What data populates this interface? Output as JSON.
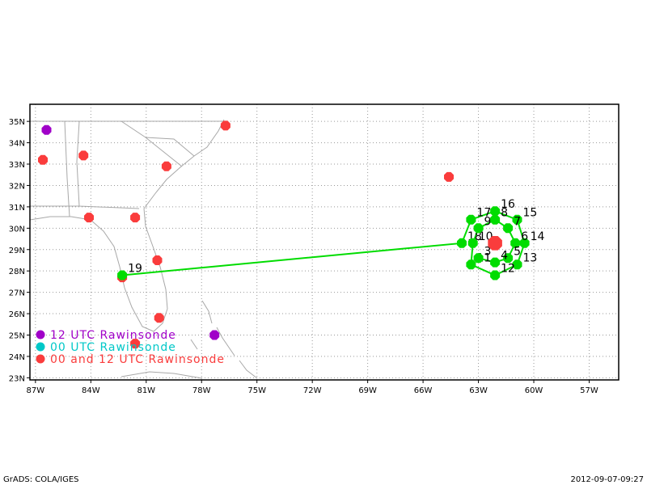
{
  "map": {
    "lon_range": [
      -87.3,
      -55.4
    ],
    "lat_range": [
      22.9,
      35.8
    ],
    "xticks": [
      {
        "value": -87,
        "label": "87W"
      },
      {
        "value": -84,
        "label": "84W"
      },
      {
        "value": -81,
        "label": "81W"
      },
      {
        "value": -78,
        "label": "78W"
      },
      {
        "value": -75,
        "label": "75W"
      },
      {
        "value": -72,
        "label": "72W"
      },
      {
        "value": -69,
        "label": "69W"
      },
      {
        "value": -66,
        "label": "66W"
      },
      {
        "value": -63,
        "label": "63W"
      },
      {
        "value": -60,
        "label": "60W"
      },
      {
        "value": -57,
        "label": "57W"
      }
    ],
    "yticks": [
      {
        "value": 23,
        "label": "23N"
      },
      {
        "value": 24,
        "label": "24N"
      },
      {
        "value": 25,
        "label": "25N"
      },
      {
        "value": 26,
        "label": "26N"
      },
      {
        "value": 27,
        "label": "27N"
      },
      {
        "value": 28,
        "label": "28N"
      },
      {
        "value": 29,
        "label": "29N"
      },
      {
        "value": 30,
        "label": "30N"
      },
      {
        "value": 31,
        "label": "31N"
      },
      {
        "value": 32,
        "label": "32N"
      },
      {
        "value": 33,
        "label": "33N"
      },
      {
        "value": 34,
        "label": "34N"
      },
      {
        "value": 35,
        "label": "35N"
      }
    ],
    "legend": [
      {
        "label": "12 UTC Rawinsonde",
        "color": "#a000c8"
      },
      {
        "label": "00 UTC Rawinsonde",
        "color": "#00c8c8"
      },
      {
        "label": "00 and 12 UTC Rawinsonde",
        "color": "#fa3c3c"
      }
    ],
    "rawinsondes": [
      {
        "lon": -86.4,
        "lat": 34.6,
        "color": "#a000c8"
      },
      {
        "lon": -77.3,
        "lat": 25.0,
        "color": "#a000c8"
      },
      {
        "lon": -86.6,
        "lat": 33.2,
        "color": "#fa3c3c"
      },
      {
        "lon": -84.4,
        "lat": 33.4,
        "color": "#fa3c3c"
      },
      {
        "lon": -79.9,
        "lat": 32.9,
        "color": "#fa3c3c"
      },
      {
        "lon": -76.7,
        "lat": 34.8,
        "color": "#fa3c3c"
      },
      {
        "lon": -64.6,
        "lat": 32.4,
        "color": "#fa3c3c"
      },
      {
        "lon": -84.1,
        "lat": 30.5,
        "color": "#fa3c3c"
      },
      {
        "lon": -81.6,
        "lat": 30.5,
        "color": "#fa3c3c"
      },
      {
        "lon": -80.4,
        "lat": 28.5,
        "color": "#fa3c3c"
      },
      {
        "lon": -82.3,
        "lat": 27.7,
        "color": "#fa3c3c"
      },
      {
        "lon": -80.3,
        "lat": 25.8,
        "color": "#fa3c3c"
      },
      {
        "lon": -81.6,
        "lat": 24.6,
        "color": "#fa3c3c"
      }
    ],
    "dropsonde_color": "#00dc00",
    "dropsondes": [
      {
        "label": "19",
        "lon": -82.3,
        "lat": 27.8
      },
      {
        "label": "18",
        "lon": -63.9,
        "lat": 29.3
      },
      {
        "label": "17",
        "lon": -63.4,
        "lat": 30.4
      },
      {
        "label": "16",
        "lon": -62.1,
        "lat": 30.8
      },
      {
        "label": "15",
        "lon": -60.9,
        "lat": 30.4
      },
      {
        "label": "14",
        "lon": -60.5,
        "lat": 29.3
      },
      {
        "label": "13",
        "lon": -60.9,
        "lat": 28.3
      },
      {
        "label": "12",
        "lon": -62.1,
        "lat": 27.8
      },
      {
        "label": "11",
        "lon": -63.4,
        "lat": 28.3
      },
      {
        "label": "10",
        "lon": -63.3,
        "lat": 29.3
      },
      {
        "label": "9",
        "lon": -63.0,
        "lat": 30.0
      },
      {
        "label": "8",
        "lon": -62.1,
        "lat": 30.4
      },
      {
        "label": "7",
        "lon": -61.4,
        "lat": 30.0
      },
      {
        "label": "6",
        "lon": -61.0,
        "lat": 29.3
      },
      {
        "label": "5",
        "lon": -61.4,
        "lat": 28.6
      },
      {
        "label": "4",
        "lon": -62.1,
        "lat": 28.4
      },
      {
        "label": "3",
        "lon": -63.0,
        "lat": 28.6
      }
    ],
    "storm_center": {
      "lon": -62.1,
      "lat": 29.3,
      "color": "#fa3c3c"
    },
    "footer": {
      "left": "GrADS: COLA/IGES",
      "right": "2012-09-07-09:27"
    }
  }
}
